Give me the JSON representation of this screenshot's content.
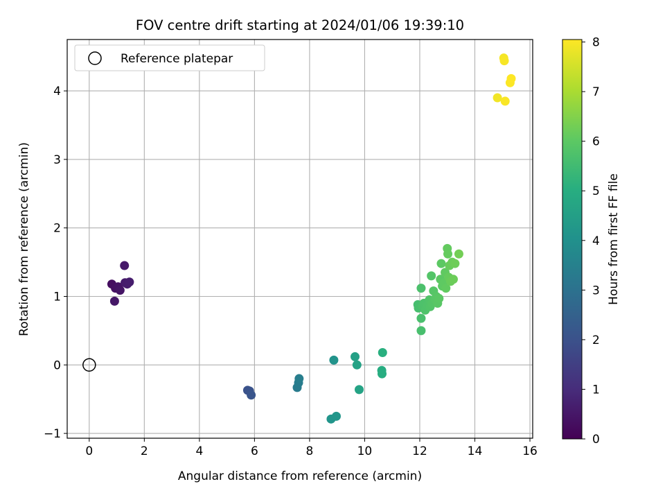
{
  "chart_data": {
    "type": "scatter",
    "title": "FOV centre drift starting at 2024/01/06 19:39:10",
    "xlabel": "Angular distance from reference (arcmin)",
    "ylabel": "Rotation from reference (arcmin)",
    "xlim": [
      -0.8,
      16.1
    ],
    "ylim": [
      -1.07,
      4.75
    ],
    "x_ticks": [
      0,
      2,
      4,
      6,
      8,
      10,
      12,
      14,
      16
    ],
    "y_ticks": [
      -1,
      0,
      1,
      2,
      3,
      4
    ],
    "grid": true,
    "legend": {
      "position": "top-left",
      "entries": [
        "Reference platepar"
      ]
    },
    "colorbar": {
      "label": "Hours from first FF file",
      "range": [
        0,
        8.05
      ],
      "ticks": [
        0,
        1,
        2,
        3,
        4,
        5,
        6,
        7,
        8
      ],
      "colormap": "viridis"
    },
    "reference_point": {
      "x": 0,
      "y": 0
    },
    "series": [
      {
        "marker": "filled-circle",
        "points": [
          {
            "x": 0.82,
            "y": 1.18,
            "h": 0.3
          },
          {
            "x": 0.95,
            "y": 1.12,
            "h": 0.35
          },
          {
            "x": 1.05,
            "y": 1.14,
            "h": 0.4
          },
          {
            "x": 1.12,
            "y": 1.09,
            "h": 0.45
          },
          {
            "x": 0.92,
            "y": 0.93,
            "h": 0.5
          },
          {
            "x": 1.28,
            "y": 1.45,
            "h": 0.55
          },
          {
            "x": 1.3,
            "y": 1.2,
            "h": 0.6
          },
          {
            "x": 1.38,
            "y": 1.18,
            "h": 0.62
          },
          {
            "x": 1.46,
            "y": 1.21,
            "h": 0.65
          },
          {
            "x": 5.75,
            "y": -0.37,
            "h": 2.0
          },
          {
            "x": 5.82,
            "y": -0.38,
            "h": 2.05
          },
          {
            "x": 5.88,
            "y": -0.44,
            "h": 2.1
          },
          {
            "x": 7.55,
            "y": -0.33,
            "h": 3.3
          },
          {
            "x": 7.6,
            "y": -0.26,
            "h": 3.35
          },
          {
            "x": 7.62,
            "y": -0.2,
            "h": 3.4
          },
          {
            "x": 8.88,
            "y": 0.07,
            "h": 4.1
          },
          {
            "x": 8.78,
            "y": -0.79,
            "h": 4.15
          },
          {
            "x": 8.97,
            "y": -0.75,
            "h": 4.2
          },
          {
            "x": 9.65,
            "y": 0.12,
            "h": 4.55
          },
          {
            "x": 9.72,
            "y": 0.0,
            "h": 4.6
          },
          {
            "x": 9.8,
            "y": -0.36,
            "h": 4.65
          },
          {
            "x": 10.62,
            "y": -0.08,
            "h": 4.95
          },
          {
            "x": 10.63,
            "y": -0.13,
            "h": 4.98
          },
          {
            "x": 10.65,
            "y": 0.18,
            "h": 5.05
          },
          {
            "x": 11.93,
            "y": 0.88,
            "h": 5.6
          },
          {
            "x": 11.95,
            "y": 0.83,
            "h": 5.62
          },
          {
            "x": 12.05,
            "y": 0.5,
            "h": 5.65
          },
          {
            "x": 12.05,
            "y": 0.68,
            "h": 5.67
          },
          {
            "x": 12.05,
            "y": 1.12,
            "h": 5.7
          },
          {
            "x": 12.1,
            "y": 0.86,
            "h": 5.72
          },
          {
            "x": 12.15,
            "y": 0.9,
            "h": 5.74
          },
          {
            "x": 12.2,
            "y": 0.8,
            "h": 5.76
          },
          {
            "x": 12.28,
            "y": 0.87,
            "h": 5.78
          },
          {
            "x": 12.35,
            "y": 0.95,
            "h": 5.8
          },
          {
            "x": 12.38,
            "y": 0.85,
            "h": 5.82
          },
          {
            "x": 12.42,
            "y": 1.3,
            "h": 5.84
          },
          {
            "x": 12.45,
            "y": 0.9,
            "h": 5.86
          },
          {
            "x": 12.5,
            "y": 1.08,
            "h": 5.88
          },
          {
            "x": 12.55,
            "y": 0.96,
            "h": 5.9
          },
          {
            "x": 12.6,
            "y": 1.0,
            "h": 5.92
          },
          {
            "x": 12.65,
            "y": 0.9,
            "h": 5.94
          },
          {
            "x": 12.7,
            "y": 0.97,
            "h": 5.96
          },
          {
            "x": 12.75,
            "y": 1.25,
            "h": 5.98
          },
          {
            "x": 12.78,
            "y": 1.48,
            "h": 6.0
          },
          {
            "x": 12.82,
            "y": 1.15,
            "h": 6.02
          },
          {
            "x": 12.88,
            "y": 1.2,
            "h": 6.04
          },
          {
            "x": 12.92,
            "y": 1.35,
            "h": 6.06
          },
          {
            "x": 12.95,
            "y": 1.12,
            "h": 6.08
          },
          {
            "x": 13.0,
            "y": 1.7,
            "h": 6.1
          },
          {
            "x": 13.02,
            "y": 1.62,
            "h": 6.12
          },
          {
            "x": 13.05,
            "y": 1.28,
            "h": 6.14
          },
          {
            "x": 13.08,
            "y": 1.45,
            "h": 6.16
          },
          {
            "x": 13.12,
            "y": 1.22,
            "h": 6.18
          },
          {
            "x": 13.18,
            "y": 1.5,
            "h": 6.2
          },
          {
            "x": 13.22,
            "y": 1.25,
            "h": 6.22
          },
          {
            "x": 13.28,
            "y": 1.48,
            "h": 6.24
          },
          {
            "x": 13.42,
            "y": 1.62,
            "h": 6.3
          },
          {
            "x": 14.82,
            "y": 3.9,
            "h": 7.9
          },
          {
            "x": 15.05,
            "y": 4.48,
            "h": 7.95
          },
          {
            "x": 15.07,
            "y": 4.44,
            "h": 7.97
          },
          {
            "x": 15.1,
            "y": 3.85,
            "h": 8.0
          },
          {
            "x": 15.28,
            "y": 4.12,
            "h": 8.02
          },
          {
            "x": 15.32,
            "y": 4.18,
            "h": 8.05
          }
        ]
      }
    ]
  }
}
